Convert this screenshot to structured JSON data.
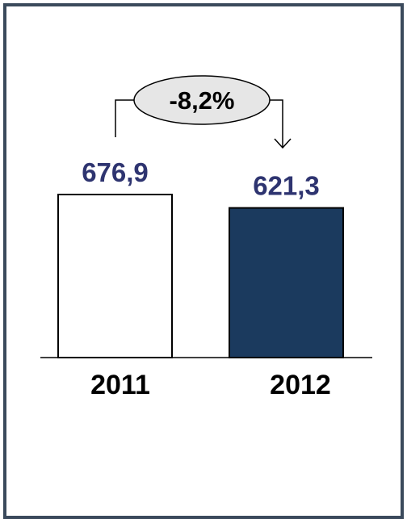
{
  "chart_data": {
    "type": "bar",
    "categories": [
      "2011",
      "2012"
    ],
    "values": [
      676.9,
      621.3
    ],
    "value_labels": [
      "676,9",
      "621,3"
    ],
    "change_label": "-8,2%",
    "bar_colors": [
      "#ffffff",
      "#1b3a5e"
    ],
    "bar_stroke": "#000000",
    "value_label_color": "#2e3470",
    "axis": {
      "ymin": 0
    }
  }
}
